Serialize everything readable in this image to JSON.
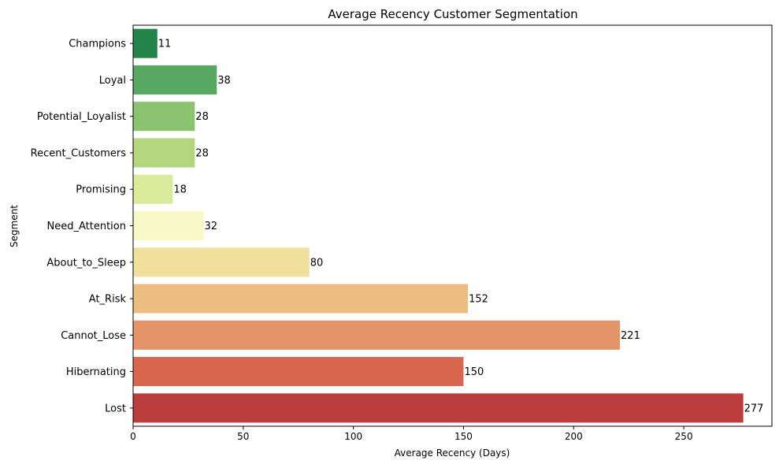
{
  "chart_data": {
    "type": "bar",
    "orientation": "horizontal",
    "title": "Average Recency Customer Segmentation",
    "xlabel": "Average Recency (Days)",
    "ylabel": "Segment",
    "categories": [
      "Champions",
      "Loyal",
      "Potential_Loyalist",
      "Recent_Customers",
      "Promising",
      "Need_Attention",
      "About_to_Sleep",
      "At_Risk",
      "Cannot_Lose",
      "Hibernating",
      "Lost"
    ],
    "values": [
      11,
      38,
      28,
      28,
      18,
      32,
      80,
      152,
      221,
      150,
      277
    ],
    "data_labels": [
      "11",
      "38",
      "28",
      "28",
      "18",
      "32",
      "80",
      "152",
      "221",
      "150",
      "277"
    ],
    "colors": [
      "#23844a",
      "#56a863",
      "#8bc26f",
      "#b3d67f",
      "#dbe99c",
      "#f7f9c6",
      "#f1df9e",
      "#ebbd80",
      "#e49468",
      "#d8664f",
      "#ba3c3c"
    ],
    "xlim": [
      0,
      290
    ],
    "xticks": [
      0,
      50,
      100,
      150,
      200,
      250
    ],
    "xtick_labels": [
      "0",
      "50",
      "100",
      "150",
      "200",
      "250"
    ],
    "grid": false,
    "legend": "none"
  }
}
